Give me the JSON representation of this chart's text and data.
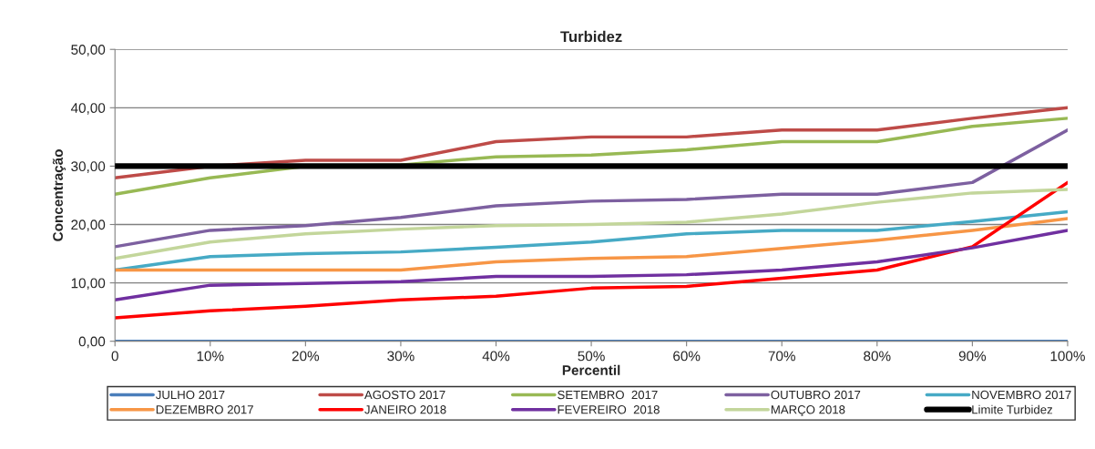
{
  "chart_data": {
    "type": "line",
    "title": "Turbidez",
    "xlabel": "Percentil",
    "ylabel": "Concentração",
    "x": [
      0,
      10,
      20,
      30,
      40,
      50,
      60,
      70,
      80,
      90,
      100
    ],
    "xlim": [
      0,
      100
    ],
    "xticks": [
      0,
      {
        "value": 10,
        "label": "10%"
      },
      {
        "value": 20,
        "label": "20%"
      },
      {
        "value": 30,
        "label": "30%"
      },
      {
        "value": 40,
        "label": "40%"
      },
      {
        "value": 50,
        "label": "50%"
      },
      {
        "value": 60,
        "label": "60%"
      },
      {
        "value": 70,
        "label": "70%"
      },
      {
        "value": 80,
        "label": "80%"
      },
      {
        "value": 90,
        "label": "90%"
      },
      {
        "value": 100,
        "label": "100%"
      }
    ],
    "ylim": [
      0,
      50
    ],
    "yticks": [
      {
        "value": 0,
        "label": "0,00"
      },
      {
        "value": 10,
        "label": "10,00"
      },
      {
        "value": 20,
        "label": "20,00"
      },
      {
        "value": 30,
        "label": "30,00"
      },
      {
        "value": 40,
        "label": "40,00"
      },
      {
        "value": 50,
        "label": "50,00"
      }
    ],
    "grid": "y",
    "legend": "bottom",
    "marker": "none",
    "line_style": "solid",
    "series": [
      {
        "name": "JULHO 2017",
        "color": "#4a7ebb",
        "values": [
          0,
          0,
          0,
          0,
          0,
          0,
          0,
          0,
          0,
          0,
          0
        ]
      },
      {
        "name": "AGOSTO 2017",
        "color": "#be4b48",
        "values": [
          28,
          30,
          31,
          31,
          34.2,
          35,
          35,
          36.2,
          36.2,
          38.2,
          40
        ]
      },
      {
        "name": "SETEMBRO  2017",
        "color": "#98b954",
        "values": [
          25.2,
          28,
          30,
          30.2,
          31.6,
          31.9,
          32.8,
          34.2,
          34.2,
          36.8,
          38.2
        ]
      },
      {
        "name": "OUTUBRO 2017",
        "color": "#7d60a0",
        "values": [
          16.2,
          19,
          19.8,
          21.2,
          23.2,
          24,
          24.3,
          25.2,
          25.2,
          27.2,
          36.2
        ]
      },
      {
        "name": "NOVEMBRO 2017",
        "color": "#46aac5",
        "values": [
          12.2,
          14.5,
          15,
          15.3,
          16.1,
          17,
          18.4,
          19,
          19,
          20.5,
          22.2
        ]
      },
      {
        "name": "DEZEMBRO 2017",
        "color": "#f79646",
        "values": [
          12.2,
          12.2,
          12.2,
          12.2,
          13.6,
          14.2,
          14.5,
          15.9,
          17.3,
          19,
          21
        ]
      },
      {
        "name": "JANEIRO 2018",
        "color": "#ff0000",
        "values": [
          4,
          5.2,
          6,
          7.1,
          7.7,
          9.1,
          9.4,
          10.8,
          12.2,
          16.2,
          27.2
        ]
      },
      {
        "name": "FEVEREIRO  2018",
        "color": "#7030a0",
        "values": [
          7.1,
          9.6,
          9.9,
          10.2,
          11.1,
          11.1,
          11.4,
          12.2,
          13.6,
          16,
          19
        ]
      },
      {
        "name": "MARÇO 2018",
        "color": "#c3d69b",
        "values": [
          14.2,
          17,
          18.4,
          19.2,
          19.8,
          20,
          20.4,
          21.8,
          23.8,
          25.4,
          26
        ]
      }
    ],
    "ref_lines": [
      {
        "axis": "y",
        "value": 30,
        "label": "Limite Turbidez",
        "color": "#000000",
        "line_style": "solid"
      }
    ]
  }
}
